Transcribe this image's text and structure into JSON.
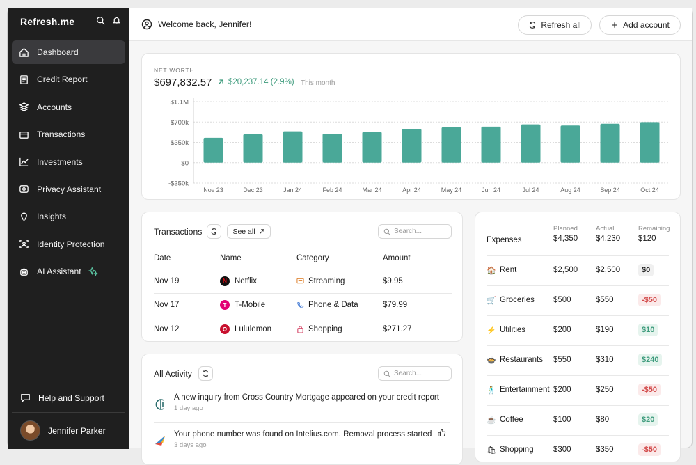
{
  "app": {
    "name": "Refresh.me"
  },
  "sidebar": {
    "items": [
      {
        "label": "Dashboard",
        "icon": "home-icon"
      },
      {
        "label": "Credit Report",
        "icon": "report-icon"
      },
      {
        "label": "Accounts",
        "icon": "layers-icon"
      },
      {
        "label": "Transactions",
        "icon": "card-icon"
      },
      {
        "label": "Investments",
        "icon": "chart-line-icon"
      },
      {
        "label": "Privacy Assistant",
        "icon": "eye-icon"
      },
      {
        "label": "Insights",
        "icon": "lightbulb-icon"
      },
      {
        "label": "Identity Protection",
        "icon": "id-icon"
      },
      {
        "label": "AI Assistant",
        "icon": "robot-icon"
      }
    ],
    "help_label": "Help and Support",
    "user_name": "Jennifer Parker"
  },
  "topbar": {
    "welcome": "Welcome back, Jennifer!",
    "refresh_label": "Refresh all",
    "add_account_label": "Add account"
  },
  "net_worth": {
    "label": "NET WORTH",
    "value": "$697,832.57",
    "change": "$20,237.14 (2.9%)",
    "period": "This month"
  },
  "chart_data": {
    "type": "bar",
    "categories": [
      "Nov 23",
      "Dec 23",
      "Jan 24",
      "Feb 24",
      "Mar 24",
      "Apr 24",
      "May 24",
      "Jun 24",
      "Jul 24",
      "Aug 24",
      "Sep 24",
      "Oct 24"
    ],
    "values": [
      430000,
      490000,
      540000,
      500000,
      530000,
      580000,
      610000,
      620000,
      660000,
      640000,
      670000,
      698000
    ],
    "ytick_labels": [
      "$1.1M",
      "$700k",
      "$350k",
      "$0",
      "-$350k"
    ],
    "ytick_values": [
      1050000,
      700000,
      350000,
      0,
      -350000
    ],
    "ylim": [
      -350000,
      1050000
    ],
    "color": "#4aa898"
  },
  "transactions": {
    "title": "Transactions",
    "see_all": "See all",
    "search_placeholder": "Search...",
    "headers": [
      "Date",
      "Name",
      "Category",
      "Amount"
    ],
    "rows": [
      {
        "date": "Nov 19",
        "name": "Netflix",
        "category": "Streaming",
        "amount": "$9.95"
      },
      {
        "date": "Nov 17",
        "name": "T-Mobile",
        "category": "Phone & Data",
        "amount": "$79.99"
      },
      {
        "date": "Nov 12",
        "name": "Lululemon",
        "category": "Shopping",
        "amount": "$271.27"
      }
    ]
  },
  "activity": {
    "title": "All Activity",
    "search_placeholder": "Search...",
    "items": [
      {
        "text": "A new inquiry from Cross Country Mortgage appeared on your credit report",
        "time": "1 day ago"
      },
      {
        "text": "Your phone number was found on Intelius.com. Removal process started",
        "time": "3 days ago"
      }
    ]
  },
  "expenses": {
    "title": "Expenses",
    "planned_label": "Planned",
    "planned_total": "$4,350",
    "actual_label": "Actual",
    "actual_total": "$4,230",
    "remaining_label": "Remaining",
    "remaining_total": "$120",
    "rows": [
      {
        "emoji": "🏠",
        "name": "Rent",
        "planned": "$2,500",
        "actual": "$2,500",
        "remaining": "$0",
        "status": "neutral"
      },
      {
        "emoji": "🛒",
        "name": "Groceries",
        "planned": "$500",
        "actual": "$550",
        "remaining": "-$50",
        "status": "neg"
      },
      {
        "emoji": "⚡",
        "name": "Utilities",
        "planned": "$200",
        "actual": "$190",
        "remaining": "$10",
        "status": "pos"
      },
      {
        "emoji": "🍲",
        "name": "Restaurants",
        "planned": "$550",
        "actual": "$310",
        "remaining": "$240",
        "status": "pos"
      },
      {
        "emoji": "🕺",
        "name": "Entertainment",
        "planned": "$200",
        "actual": "$250",
        "remaining": "-$50",
        "status": "neg"
      },
      {
        "emoji": "☕",
        "name": "Coffee",
        "planned": "$100",
        "actual": "$80",
        "remaining": "$20",
        "status": "pos"
      },
      {
        "emoji": "🛍",
        "name": "Shopping",
        "planned": "$300",
        "actual": "$350",
        "remaining": "-$50",
        "status": "neg"
      }
    ]
  }
}
